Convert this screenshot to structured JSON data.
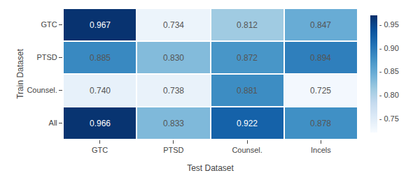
{
  "chart_data": {
    "type": "heatmap",
    "x": [
      "GTC",
      "PTSD",
      "Counsel.",
      "Incels"
    ],
    "y": [
      "GTC",
      "PTSD",
      "Counsel.",
      "All"
    ],
    "xlabel": "Test Dataset",
    "ylabel": "Train Dataset",
    "values": [
      [
        0.967,
        0.734,
        0.812,
        0.847
      ],
      [
        0.885,
        0.83,
        0.872,
        0.894
      ],
      [
        0.74,
        0.738,
        0.881,
        0.725
      ],
      [
        0.966,
        0.833,
        0.922,
        0.878
      ]
    ],
    "value_labels": [
      [
        "0.967",
        "0.734",
        "0.812",
        "0.847"
      ],
      [
        "0.885",
        "0.830",
        "0.872",
        "0.894"
      ],
      [
        "0.740",
        "0.738",
        "0.881",
        "0.725"
      ],
      [
        "0.966",
        "0.833",
        "0.922",
        "0.878"
      ]
    ],
    "data_labels": true,
    "colorbar_range": [
      0.72,
      0.97
    ],
    "colorbar_ticks": [
      {
        "value": 0.75,
        "label": "- 0.75"
      },
      {
        "value": 0.8,
        "label": "- 0.80"
      },
      {
        "value": 0.85,
        "label": "- 0.85"
      },
      {
        "value": 0.9,
        "label": "- 0.90"
      },
      {
        "value": 0.95,
        "label": "- 0.95"
      }
    ],
    "colors": [
      "#f7fbff",
      "#deebf7",
      "#c6dbef",
      "#9ecae1",
      "#6baed6",
      "#4292c6",
      "#2171b5",
      "#08519c",
      "#08306b"
    ]
  }
}
